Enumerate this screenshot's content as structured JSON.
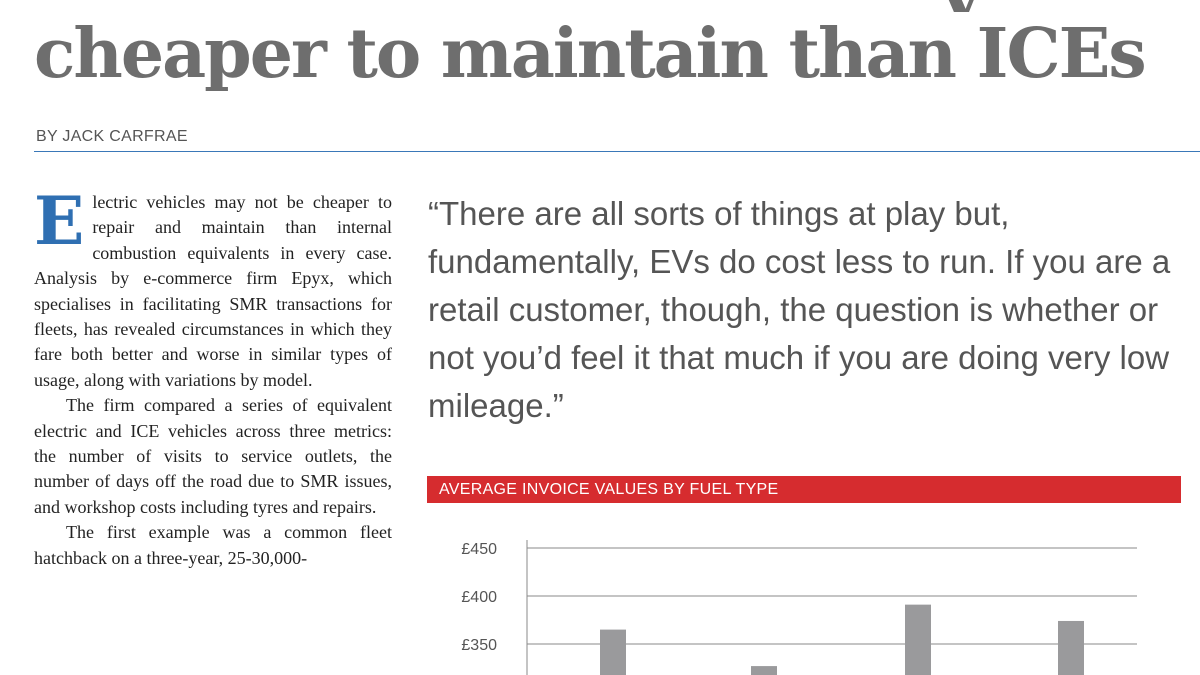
{
  "article": {
    "headline_cut_glyph": "y",
    "headline": "cheaper to maintain than ICEs",
    "byline": "BY JACK CARFRAE",
    "body": {
      "dropcap": "E",
      "p1": "lectric vehicles may not be cheaper to repair and maintain than internal combustion equivalents in every case. Analysis by e-commerce firm Epyx, which specialises in facilitating SMR transactions for fleets, has revealed circumstances in which they fare both better and worse in similar types of usage, along with variations by model.",
      "p2": "The firm compared a series of equivalent electric and ICE vehicles across three metrics: the number of visits to service outlets, the number of days off the road due to SMR issues, and workshop costs including tyres and repairs.",
      "p3": "The first example was a common fleet hatchback on a three-year, 25-30,000-"
    },
    "pull_quote": "“There are all sorts of things at play but, fundamentally, EVs do cost less to run. If you are a retail customer, though, the question is whether or not you’d feel it that much if you are doing very low mileage.”"
  },
  "colors": {
    "headline": "#6e6e6e",
    "accent_blue": "#2f6fb2",
    "banner_red": "#d62c2f",
    "bar_grey": "#9a9a9c"
  },
  "chart_data": {
    "type": "bar",
    "title": "AVERAGE INVOICE VALUES BY FUEL TYPE",
    "yticks": [
      "£450",
      "£400",
      "£350"
    ],
    "ytick_values": [
      450,
      400,
      350
    ],
    "ylim": [
      300,
      450
    ],
    "values": [
      365,
      327,
      391,
      374
    ],
    "grid": true
  }
}
